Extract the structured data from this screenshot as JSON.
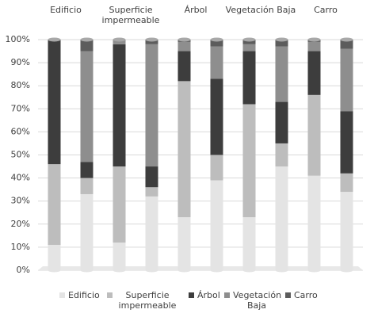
{
  "chart_data": {
    "type": "stacked_bar",
    "groups": [
      "Edificio",
      "Superficie impermeable",
      "Árbol",
      "Vegetación Baja",
      "Carro"
    ],
    "categories": [
      null,
      null,
      null,
      null,
      null,
      null,
      null,
      null,
      null,
      null
    ],
    "series": [
      {
        "name": "Edificio",
        "color": "#e4e4e4",
        "values": [
          11,
          33,
          12,
          32,
          23,
          39,
          23,
          45,
          41,
          34
        ]
      },
      {
        "name": "Superficie impermeable",
        "color": "#bdbdbd",
        "values": [
          35,
          7,
          33,
          4,
          59,
          11,
          49,
          10,
          35,
          8
        ]
      },
      {
        "name": "Árbol",
        "color": "#3d3d3d",
        "values": [
          54,
          7,
          53,
          9,
          13,
          33,
          23,
          18,
          19,
          27
        ]
      },
      {
        "name": "Vegetación Baja",
        "color": "#8e8e8e",
        "values": [
          0,
          48,
          2,
          53,
          4,
          14,
          3,
          24,
          4,
          27
        ]
      },
      {
        "name": "Carro",
        "color": "#5c5c5c",
        "values": [
          0,
          5,
          0,
          2,
          1,
          3,
          2,
          3,
          1,
          4
        ]
      }
    ],
    "ylim": [
      0,
      100
    ],
    "yticks": [
      {
        "value": 0,
        "label": "0%"
      },
      {
        "value": 10,
        "label": "10%"
      },
      {
        "value": 20,
        "label": "20%"
      },
      {
        "value": 30,
        "label": "30%"
      },
      {
        "value": 40,
        "label": "40%"
      },
      {
        "value": 50,
        "label": "50%"
      },
      {
        "value": 60,
        "label": "60%"
      },
      {
        "value": 70,
        "label": "70%"
      },
      {
        "value": 80,
        "label": "80%"
      },
      {
        "value": 90,
        "label": "90%"
      },
      {
        "value": 100,
        "label": "100%"
      }
    ],
    "grid": true
  }
}
